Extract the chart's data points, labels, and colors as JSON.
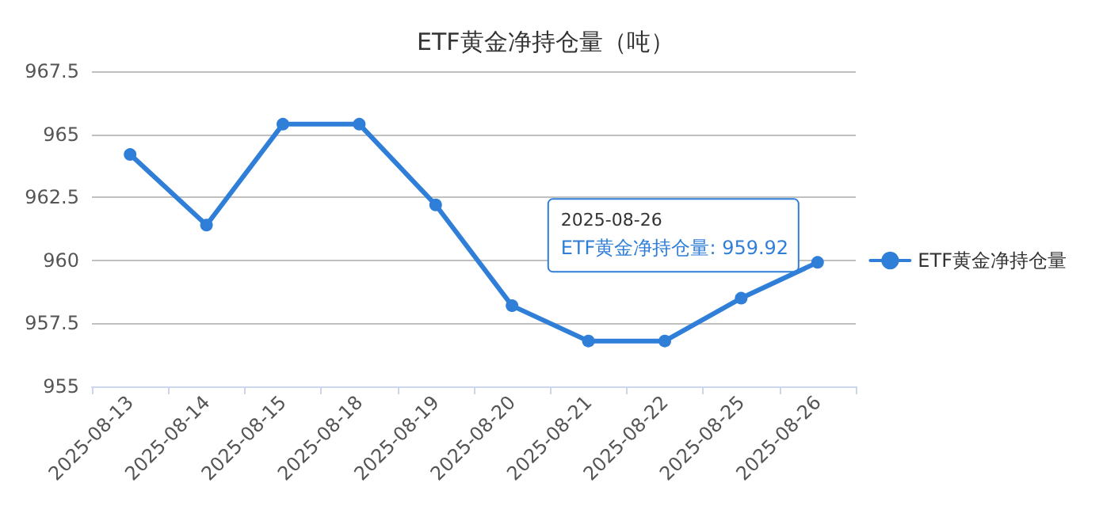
{
  "chart_data": {
    "type": "line",
    "title": "ETF黄金净持仓量（吨）",
    "categories": [
      "2025-08-13",
      "2025-08-14",
      "2025-08-15",
      "2025-08-18",
      "2025-08-19",
      "2025-08-20",
      "2025-08-21",
      "2025-08-22",
      "2025-08-25",
      "2025-08-26"
    ],
    "series": [
      {
        "name": "ETF黄金净持仓量",
        "color": "#2f7ed8",
        "values": [
          964.2,
          961.4,
          965.4,
          965.4,
          962.2,
          958.2,
          956.8,
          956.8,
          958.5,
          959.92
        ]
      }
    ],
    "ylim": [
      955,
      967.5
    ],
    "yticks": [
      955,
      957.5,
      960,
      962.5,
      965,
      967.5
    ],
    "grid": "y",
    "legend": "right",
    "marker": "circle",
    "line_style": "solid",
    "annotations": [
      {
        "text": "2025-08-26\nETF黄金净持仓量: 959.92",
        "x": "2025-08-26",
        "y": 959.92
      }
    ]
  }
}
